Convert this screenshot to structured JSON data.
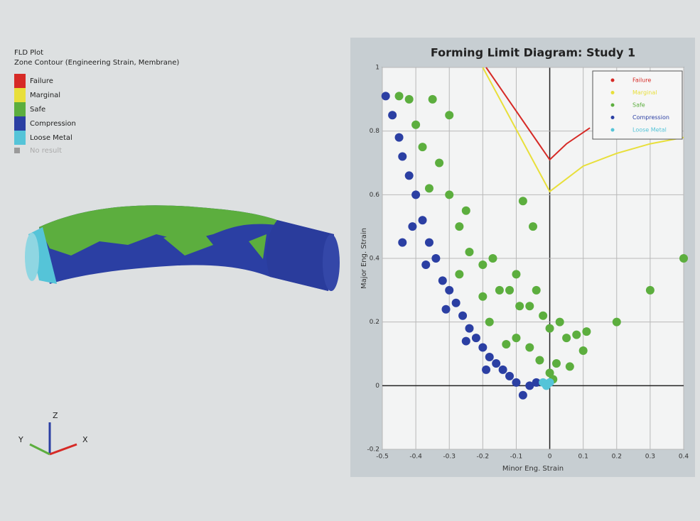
{
  "viewport": {
    "title": "FLD Plot",
    "subtitle": "Zone Contour (Engineering Strain, Membrane)",
    "legend": [
      {
        "label": "Failure",
        "color": "#d62a26"
      },
      {
        "label": "Marginal",
        "color": "#e8df3a"
      },
      {
        "label": "Safe",
        "color": "#5cae3e"
      },
      {
        "label": "Compression",
        "color": "#2b3fa3"
      },
      {
        "label": "Loose Metal",
        "color": "#55c4d8"
      },
      {
        "label": "No result",
        "color": "#9a9a9a"
      }
    ],
    "axes": {
      "x": "X",
      "y": "Y",
      "z": "Z"
    }
  },
  "chart_data": {
    "type": "scatter",
    "title": "Forming Limit Diagram: Study 1",
    "x_label": "Minor Eng. Strain",
    "y_label": "Major Eng. Strain",
    "xlim": [
      -0.5,
      0.4
    ],
    "ylim": [
      -0.2,
      1
    ],
    "xticks": [
      -0.5,
      -0.4,
      -0.3,
      -0.2,
      -0.1,
      0,
      0.1,
      0.2,
      0.3,
      0.4
    ],
    "yticks": [
      -0.2,
      0,
      0.2,
      0.4,
      0.6,
      0.8,
      1
    ],
    "grid": true,
    "legend_position": "upper-right",
    "series": [
      {
        "name": "Failure",
        "color": "#d62a26",
        "mode": "line",
        "x": [
          -0.19,
          0,
          0.05,
          0.12
        ],
        "values": [
          1.0,
          0.71,
          0.76,
          0.81
        ]
      },
      {
        "name": "Marginal",
        "color": "#e8df3a",
        "mode": "line",
        "x": [
          -0.2,
          0,
          0.1,
          0.2,
          0.3,
          0.4
        ],
        "values": [
          1.0,
          0.61,
          0.69,
          0.73,
          0.76,
          0.78
        ]
      },
      {
        "name": "Safe",
        "color": "#5cae3e",
        "mode": "points",
        "x": [
          -0.45,
          -0.42,
          -0.4,
          -0.38,
          -0.35,
          -0.3,
          -0.36,
          -0.33,
          -0.3,
          -0.27,
          -0.25,
          -0.24,
          -0.2,
          -0.17,
          -0.15,
          -0.2,
          -0.12,
          -0.1,
          -0.09,
          -0.06,
          -0.04,
          -0.02,
          -0.1,
          -0.06,
          0,
          0.03,
          0.05,
          0.08,
          0.11,
          -0.03,
          0.02,
          0.06,
          0,
          -0.18,
          -0.13,
          -0.27,
          -0.08,
          -0.05,
          0.01,
          0.1,
          0.2,
          0.3,
          0.4
        ],
        "values": [
          0.91,
          0.9,
          0.82,
          0.75,
          0.9,
          0.85,
          0.62,
          0.7,
          0.6,
          0.5,
          0.55,
          0.42,
          0.38,
          0.4,
          0.3,
          0.28,
          0.3,
          0.35,
          0.25,
          0.25,
          0.3,
          0.22,
          0.15,
          0.12,
          0.18,
          0.2,
          0.15,
          0.16,
          0.17,
          0.08,
          0.07,
          0.06,
          0.04,
          0.2,
          0.13,
          0.35,
          0.58,
          0.5,
          0.02,
          0.11,
          0.2,
          0.3,
          0.4
        ]
      },
      {
        "name": "Compression",
        "color": "#2b3fa3",
        "mode": "points",
        "x": [
          -0.49,
          -0.47,
          -0.45,
          -0.44,
          -0.42,
          -0.4,
          -0.41,
          -0.44,
          -0.38,
          -0.36,
          -0.34,
          -0.37,
          -0.32,
          -0.3,
          -0.28,
          -0.31,
          -0.26,
          -0.24,
          -0.22,
          -0.25,
          -0.2,
          -0.18,
          -0.16,
          -0.19,
          -0.14,
          -0.12,
          -0.1,
          -0.08,
          -0.06,
          -0.04
        ],
        "values": [
          0.91,
          0.85,
          0.78,
          0.72,
          0.66,
          0.6,
          0.5,
          0.45,
          0.52,
          0.45,
          0.4,
          0.38,
          0.33,
          0.3,
          0.26,
          0.24,
          0.22,
          0.18,
          0.15,
          0.14,
          0.12,
          0.09,
          0.07,
          0.05,
          0.05,
          0.03,
          0.01,
          -0.03,
          0,
          0.01
        ]
      },
      {
        "name": "Loose Metal",
        "color": "#55c4d8",
        "mode": "points",
        "x": [
          -0.01,
          0,
          -0.02
        ],
        "values": [
          0,
          0.01,
          0.01
        ]
      }
    ]
  }
}
